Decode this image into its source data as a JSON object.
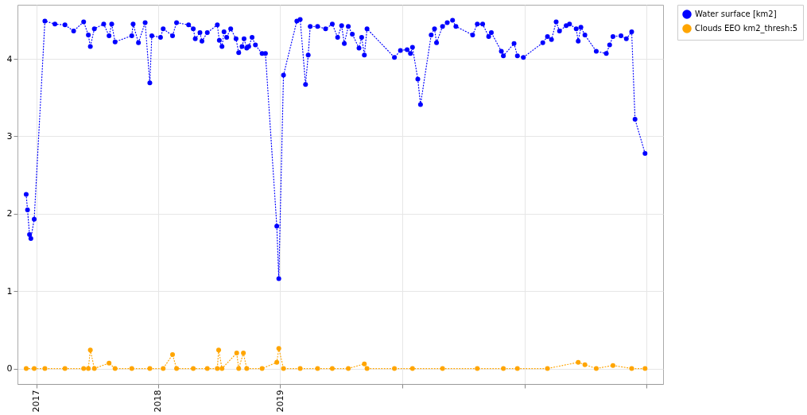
{
  "chart_data": {
    "type": "line",
    "xlim": [
      "2016-11-06",
      "2022-02-20"
    ],
    "ylim": [
      -0.2,
      4.7
    ],
    "xticks": [
      {
        "value": "2017",
        "label": "2017"
      },
      {
        "value": "2018",
        "label": "2018"
      },
      {
        "value": "2019",
        "label": "2019"
      },
      {
        "value": "2020",
        "label": null
      },
      {
        "value": "2021",
        "label": null
      },
      {
        "value": "2022",
        "label": null
      }
    ],
    "yticks": [
      0,
      1,
      2,
      3,
      4
    ],
    "grid": true,
    "legend": "right",
    "marker": "circle",
    "line_style": "dotted",
    "series": [
      {
        "name": "Water surface [km2]",
        "color": "#0000ff",
        "x": [
          "2016-12-02",
          "2016-12-06",
          "2016-12-12",
          "2016-12-16",
          "2016-12-26",
          "2017-01-27",
          "2017-02-26",
          "2017-03-28",
          "2017-04-23",
          "2017-05-23",
          "2017-06-06",
          "2017-06-12",
          "2017-06-24",
          "2017-07-22",
          "2017-08-07",
          "2017-08-15",
          "2017-08-25",
          "2017-10-14",
          "2017-10-18",
          "2017-11-03",
          "2017-11-23",
          "2017-12-07",
          "2017-12-13",
          "2018-01-08",
          "2018-01-16",
          "2018-02-13",
          "2018-02-25",
          "2018-04-02",
          "2018-04-16",
          "2018-04-22",
          "2018-05-06",
          "2018-05-12",
          "2018-05-28",
          "2018-06-27",
          "2018-07-03",
          "2018-07-11",
          "2018-07-17",
          "2018-07-25",
          "2018-08-06",
          "2018-08-22",
          "2018-08-30",
          "2018-09-09",
          "2018-09-15",
          "2018-09-23",
          "2018-09-29",
          "2018-10-09",
          "2018-10-19",
          "2018-11-08",
          "2018-11-18",
          "2018-12-22",
          "2018-12-28",
          "2019-01-11",
          "2019-02-20",
          "2019-03-02",
          "2019-03-18",
          "2019-03-26",
          "2019-04-01",
          "2019-04-23",
          "2019-05-17",
          "2019-06-06",
          "2019-06-22",
          "2019-07-04",
          "2019-07-12",
          "2019-07-24",
          "2019-08-05",
          "2019-08-25",
          "2019-09-02",
          "2019-09-10",
          "2019-09-18",
          "2019-12-09",
          "2019-12-27",
          "2020-01-16",
          "2020-01-26",
          "2020-02-01",
          "2020-02-17",
          "2020-02-25",
          "2020-03-28",
          "2020-04-07",
          "2020-04-13",
          "2020-05-01",
          "2020-05-15",
          "2020-05-31",
          "2020-06-10",
          "2020-07-30",
          "2020-08-13",
          "2020-08-29",
          "2020-09-16",
          "2020-09-24",
          "2020-10-24",
          "2020-10-30",
          "2020-12-01",
          "2020-12-11",
          "2020-12-29",
          "2021-02-25",
          "2021-03-11",
          "2021-03-23",
          "2021-04-06",
          "2021-04-16",
          "2021-05-06",
          "2021-05-16",
          "2021-06-05",
          "2021-06-11",
          "2021-06-19",
          "2021-07-01",
          "2021-08-04",
          "2021-09-03",
          "2021-09-13",
          "2021-09-23",
          "2021-10-17",
          "2021-11-02",
          "2021-11-18",
          "2021-11-28",
          "2021-12-28"
        ],
        "values": [
          2.25,
          2.05,
          1.73,
          1.68,
          1.93,
          4.49,
          4.45,
          4.44,
          4.36,
          4.48,
          4.31,
          4.16,
          4.39,
          4.45,
          4.3,
          4.45,
          4.22,
          4.3,
          4.45,
          4.21,
          4.47,
          3.69,
          4.3,
          4.28,
          4.39,
          4.3,
          4.47,
          4.44,
          4.39,
          4.26,
          4.34,
          4.23,
          4.34,
          4.44,
          4.24,
          4.16,
          4.35,
          4.28,
          4.39,
          4.26,
          4.08,
          4.16,
          4.26,
          4.14,
          4.16,
          4.28,
          4.18,
          4.07,
          4.07,
          1.84,
          1.16,
          3.79,
          4.49,
          4.51,
          3.67,
          4.05,
          4.42,
          4.42,
          4.39,
          4.45,
          4.28,
          4.43,
          4.2,
          4.42,
          4.32,
          4.14,
          4.28,
          4.05,
          4.39,
          4.02,
          4.11,
          4.12,
          4.07,
          4.15,
          3.74,
          3.41,
          4.31,
          4.39,
          4.21,
          4.42,
          4.47,
          4.5,
          4.42,
          4.31,
          4.45,
          4.45,
          4.29,
          4.34,
          4.1,
          4.04,
          4.2,
          4.04,
          4.02,
          4.21,
          4.29,
          4.25,
          4.48,
          4.36,
          4.43,
          4.45,
          4.39,
          4.23,
          4.41,
          4.31,
          4.1,
          4.07,
          4.18,
          4.29,
          4.3,
          4.26,
          4.35,
          3.22,
          2.78
        ]
      },
      {
        "name": "Clouds EEO km2_thresh:5",
        "color": "#ffa500",
        "x": [
          "2016-12-02",
          "2016-12-26",
          "2017-01-27",
          "2017-03-28",
          "2017-05-23",
          "2017-06-06",
          "2017-06-12",
          "2017-06-24",
          "2017-08-07",
          "2017-08-25",
          "2017-10-14",
          "2017-12-07",
          "2018-01-16",
          "2018-02-13",
          "2018-02-25",
          "2018-04-16",
          "2018-05-28",
          "2018-06-27",
          "2018-07-01",
          "2018-07-11",
          "2018-08-24",
          "2018-08-30",
          "2018-09-13",
          "2018-09-23",
          "2018-11-08",
          "2018-12-22",
          "2018-12-28",
          "2019-01-11",
          "2019-03-02",
          "2019-04-23",
          "2019-06-06",
          "2019-07-24",
          "2019-09-10",
          "2019-09-18",
          "2019-12-09",
          "2020-02-01",
          "2020-05-01",
          "2020-08-13",
          "2020-10-30",
          "2020-12-11",
          "2021-03-11",
          "2021-06-11",
          "2021-07-01",
          "2021-08-04",
          "2021-09-23",
          "2021-11-18",
          "2021-12-28"
        ],
        "values": [
          0,
          0,
          0,
          0,
          0,
          0,
          0.24,
          0,
          0.07,
          0,
          0,
          0,
          0,
          0.18,
          0,
          0,
          0,
          0,
          0.24,
          0,
          0.2,
          0,
          0.2,
          0,
          0,
          0.08,
          0.26,
          0,
          0,
          0,
          0,
          0,
          0.06,
          0,
          0,
          0,
          0,
          0,
          0,
          0,
          0,
          0.08,
          0.05,
          0,
          0.04,
          0,
          0
        ]
      }
    ]
  }
}
